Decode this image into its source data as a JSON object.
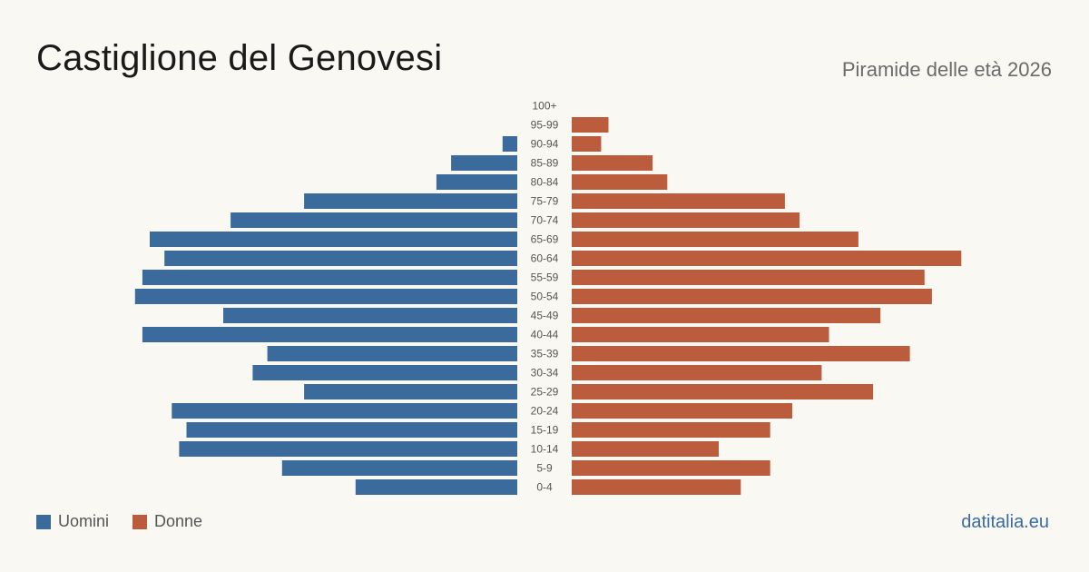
{
  "header": {
    "title": "Castiglione del Genovesi",
    "subtitle": "Piramide delle età 2026"
  },
  "legend": {
    "men_label": "Uomini",
    "women_label": "Donne"
  },
  "brand": "datitalia.eu",
  "colors": {
    "men": "#3b6b9c",
    "women": "#bb5d3c",
    "background": "#faf8f3"
  },
  "chart_data": {
    "type": "bar",
    "orientation": "horizontal-pyramid",
    "categories": [
      "100+",
      "95-99",
      "90-94",
      "85-89",
      "80-84",
      "75-79",
      "70-74",
      "65-69",
      "60-64",
      "55-59",
      "50-54",
      "45-49",
      "40-44",
      "35-39",
      "30-34",
      "25-29",
      "20-24",
      "15-19",
      "10-14",
      "5-9",
      "0-4"
    ],
    "series": [
      {
        "name": "Uomini",
        "values": [
          0,
          0,
          2,
          9,
          11,
          29,
          39,
          50,
          48,
          51,
          52,
          40,
          51,
          34,
          36,
          29,
          47,
          45,
          46,
          32,
          22
        ]
      },
      {
        "name": "Donne",
        "values": [
          0,
          5,
          4,
          11,
          13,
          29,
          31,
          39,
          53,
          48,
          49,
          42,
          35,
          46,
          34,
          41,
          30,
          27,
          20,
          27,
          23
        ]
      }
    ],
    "grid": false,
    "legend_position": "bottom-left"
  }
}
